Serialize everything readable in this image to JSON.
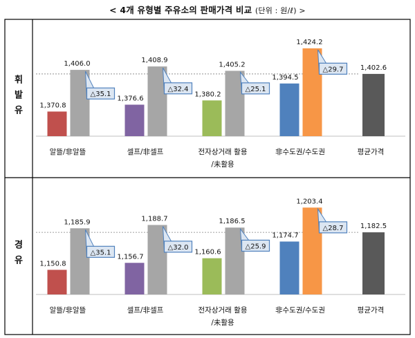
{
  "title_main": "< 4개 유형별 주유소의 판매가격 비교",
  "title_unit": "(단위 : 원/ℓ) >",
  "chart_data": [
    {
      "type": "bar",
      "fuel": "휘발유",
      "categories": [
        "알뜰/非알뜰",
        "셀프/非셀프",
        "전자상거래 활용/未활용",
        "非수도권/수도권",
        "평균가격"
      ],
      "category_lines": [
        [
          "알뜰/非알뜰"
        ],
        [
          "셀프/非셀프"
        ],
        [
          "전자상거래 활용",
          "/未활용"
        ],
        [
          "非수도권/수도권"
        ],
        [
          "평균가격"
        ]
      ],
      "bars": [
        {
          "a": 1370.8,
          "a_label": "1,370.8",
          "b": 1406.0,
          "b_label": "1,406.0",
          "diff": "△35.1",
          "color": "#c0504d"
        },
        {
          "a": 1376.6,
          "a_label": "1,376.6",
          "b": 1408.9,
          "b_label": "1,408.9",
          "diff": "△32.4",
          "color": "#8064a2"
        },
        {
          "a": 1380.2,
          "a_label": "1,380.2",
          "b": 1405.2,
          "b_label": "1,405.2",
          "diff": "△25.1",
          "color": "#9bbb59"
        },
        {
          "a": 1394.5,
          "a_label": "1,394.5",
          "b": 1424.2,
          "b_label": "1,424.2",
          "diff": "△29.7",
          "color": "#4f81bd",
          "b_color": "#f79646"
        }
      ],
      "average": {
        "value": 1402.6,
        "label": "1,402.6",
        "color": "#595959"
      },
      "ylim": [
        1350,
        1430
      ]
    },
    {
      "type": "bar",
      "fuel": "경유",
      "categories": [
        "알뜰/非알뜰",
        "셀프/非셀프",
        "전자상거래 활용/未활용",
        "非수도권/수도권",
        "평균가격"
      ],
      "category_lines": [
        [
          "알뜰/非알뜰"
        ],
        [
          "셀프/非셀프"
        ],
        [
          "전자상거래 활용",
          "/未활용"
        ],
        [
          "非수도권/수도권"
        ],
        [
          "평균가격"
        ]
      ],
      "bars": [
        {
          "a": 1150.8,
          "a_label": "1,150.8",
          "b": 1185.9,
          "b_label": "1,185.9",
          "diff": "△35.1",
          "color": "#c0504d"
        },
        {
          "a": 1156.7,
          "a_label": "1,156.7",
          "b": 1188.7,
          "b_label": "1,188.7",
          "diff": "△32.0",
          "color": "#8064a2"
        },
        {
          "a": 1160.6,
          "a_label": "1,160.6",
          "b": 1186.5,
          "b_label": "1,186.5",
          "diff": "△25.9",
          "color": "#9bbb59"
        },
        {
          "a": 1174.7,
          "a_label": "1,174.7",
          "b": 1203.4,
          "b_label": "1,203.4",
          "diff": "△28.7",
          "color": "#4f81bd",
          "b_color": "#f79646"
        }
      ],
      "average": {
        "value": 1182.5,
        "label": "1,182.5",
        "color": "#595959"
      },
      "ylim": [
        1130,
        1210
      ]
    }
  ],
  "colors": {
    "gray_bar": "#a6a6a6",
    "callout_fill": "#dce6f2",
    "callout_stroke": "#4f81bd",
    "grid_line": "#7f7f7f",
    "border": "#000000"
  }
}
